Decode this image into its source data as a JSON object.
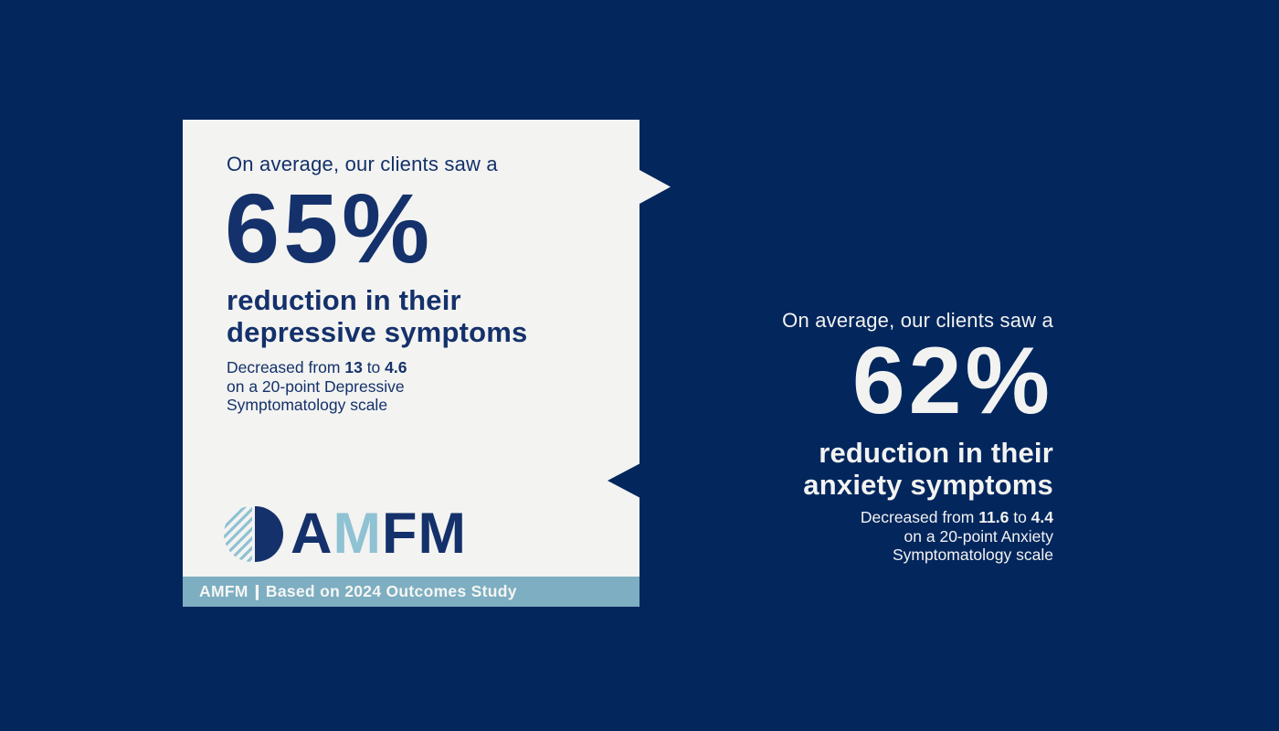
{
  "colors": {
    "navy_bg": "#03265d",
    "navy_text": "#14316b",
    "card_bg": "#f3f3f1",
    "footer_bar": "#7daec1",
    "light_blue": "#8fc2d3",
    "white_text": "#f2f3f1"
  },
  "card": {
    "eyebrow": "On average, our clients saw a",
    "stat": "65%",
    "headline_line1": "reduction in their",
    "headline_line2": "depressive symptoms",
    "detail": {
      "lead": "Decreased from ",
      "from": "13",
      "joiner": " to ",
      "to": "4.6",
      "line2": "on a 20-point Depressive",
      "line3": "Symptomatology scale"
    },
    "logo": {
      "a": "A",
      "m1": "M",
      "f": "F",
      "m2": "M"
    },
    "footer": {
      "brand": "AMFM",
      "divider": "|",
      "note": "Based on 2024 Outcomes Study"
    }
  },
  "panel": {
    "eyebrow": "On average, our clients saw a",
    "stat": "62%",
    "headline_line1": "reduction in their",
    "headline_line2": "anxiety symptoms",
    "detail": {
      "lead": "Decreased from ",
      "from": "11.6",
      "joiner": " to ",
      "to": "4.4",
      "line2": "on a 20-point Anxiety",
      "line3": "Symptomatology scale"
    }
  }
}
